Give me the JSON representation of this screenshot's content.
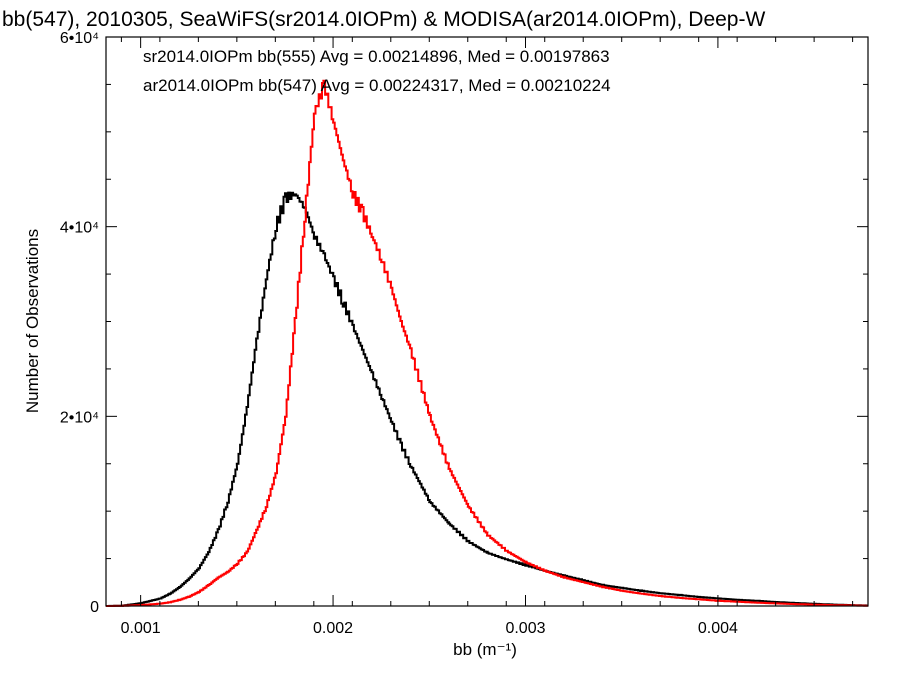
{
  "chart_data": {
    "type": "line",
    "title": "bb(547), 2010305, SeaWiFS(sr2014.0IOPm) & MODISA(ar2014.0IOPm), Deep-W",
    "xlabel": "bb (m⁻¹)",
    "ylabel": "Number of Observations",
    "xlim": [
      0.00082,
      0.00478
    ],
    "ylim": [
      0,
      60000
    ],
    "x_ticks": [
      {
        "value": 0.001,
        "label": "0.001"
      },
      {
        "value": 0.002,
        "label": "0.002"
      },
      {
        "value": 0.003,
        "label": "0.003"
      },
      {
        "value": 0.004,
        "label": "0.004"
      }
    ],
    "y_ticks": [
      {
        "value": 0,
        "label": "0"
      },
      {
        "value": 20000,
        "label": "2•10⁴"
      },
      {
        "value": 40000,
        "label": "4•10⁴"
      },
      {
        "value": 60000,
        "label": "6•10⁴"
      }
    ],
    "legend_position": "top-left",
    "grid": false,
    "style": "step",
    "series": [
      {
        "name": "sr2014.0IOPm bb(555) Avg = 0.00214896, Med = 0.00197863",
        "color": "#000000",
        "x": [
          0.00082,
          0.0009,
          0.001,
          0.0011,
          0.00115,
          0.0012,
          0.00125,
          0.0013,
          0.00135,
          0.0014,
          0.00145,
          0.0015,
          0.00155,
          0.0016,
          0.00165,
          0.0017,
          0.00175,
          0.0018,
          0.00185,
          0.0019,
          0.00195,
          0.002,
          0.00205,
          0.0021,
          0.00215,
          0.0022,
          0.00225,
          0.0023,
          0.00235,
          0.0024,
          0.0025,
          0.0026,
          0.0027,
          0.0028,
          0.0029,
          0.003,
          0.0031,
          0.0032,
          0.0033,
          0.0034,
          0.0035,
          0.0036,
          0.0037,
          0.0038,
          0.0039,
          0.004,
          0.0041,
          0.0042,
          0.0043,
          0.0044,
          0.0045,
          0.0046,
          0.0047,
          0.00478
        ],
        "y": [
          0,
          30,
          300,
          800,
          1300,
          2000,
          2900,
          4000,
          5700,
          8000,
          11000,
          15000,
          21000,
          28000,
          34500,
          40000,
          43000,
          43500,
          42000,
          39000,
          37000,
          34500,
          32000,
          29500,
          27000,
          24500,
          22000,
          19500,
          17000,
          14800,
          11000,
          8700,
          6800,
          5600,
          4900,
          4300,
          3700,
          3200,
          2700,
          2200,
          1900,
          1600,
          1350,
          1150,
          950,
          800,
          650,
          550,
          420,
          320,
          230,
          150,
          90,
          50
        ]
      },
      {
        "name": "ar2014.0IOPm bb(547) Avg = 0.00224317, Med = 0.00210224",
        "color": "#ff0000",
        "x": [
          0.00082,
          0.0009,
          0.001,
          0.0011,
          0.00115,
          0.0012,
          0.00125,
          0.0013,
          0.00135,
          0.0014,
          0.00145,
          0.0015,
          0.00155,
          0.0016,
          0.00165,
          0.0017,
          0.00175,
          0.0018,
          0.00185,
          0.0019,
          0.00195,
          0.002,
          0.00205,
          0.0021,
          0.00215,
          0.0022,
          0.00225,
          0.0023,
          0.00235,
          0.0024,
          0.0025,
          0.0026,
          0.0027,
          0.0028,
          0.0029,
          0.003,
          0.0031,
          0.0032,
          0.0033,
          0.0034,
          0.0035,
          0.0036,
          0.0037,
          0.0038,
          0.0039,
          0.004,
          0.0041,
          0.0042,
          0.0043,
          0.0044,
          0.0045,
          0.0046,
          0.0047,
          0.00478
        ],
        "y": [
          0,
          10,
          100,
          250,
          400,
          650,
          1000,
          1500,
          2200,
          3000,
          3600,
          4500,
          5700,
          8000,
          10500,
          14000,
          20000,
          30000,
          41000,
          52000,
          55000,
          51000,
          47000,
          43500,
          41500,
          39000,
          36500,
          33500,
          30000,
          27000,
          20000,
          14500,
          10500,
          7500,
          5800,
          4600,
          3700,
          3000,
          2500,
          2000,
          1600,
          1300,
          1050,
          850,
          700,
          550,
          450,
          350,
          270,
          200,
          140,
          90,
          55,
          30
        ]
      }
    ]
  }
}
